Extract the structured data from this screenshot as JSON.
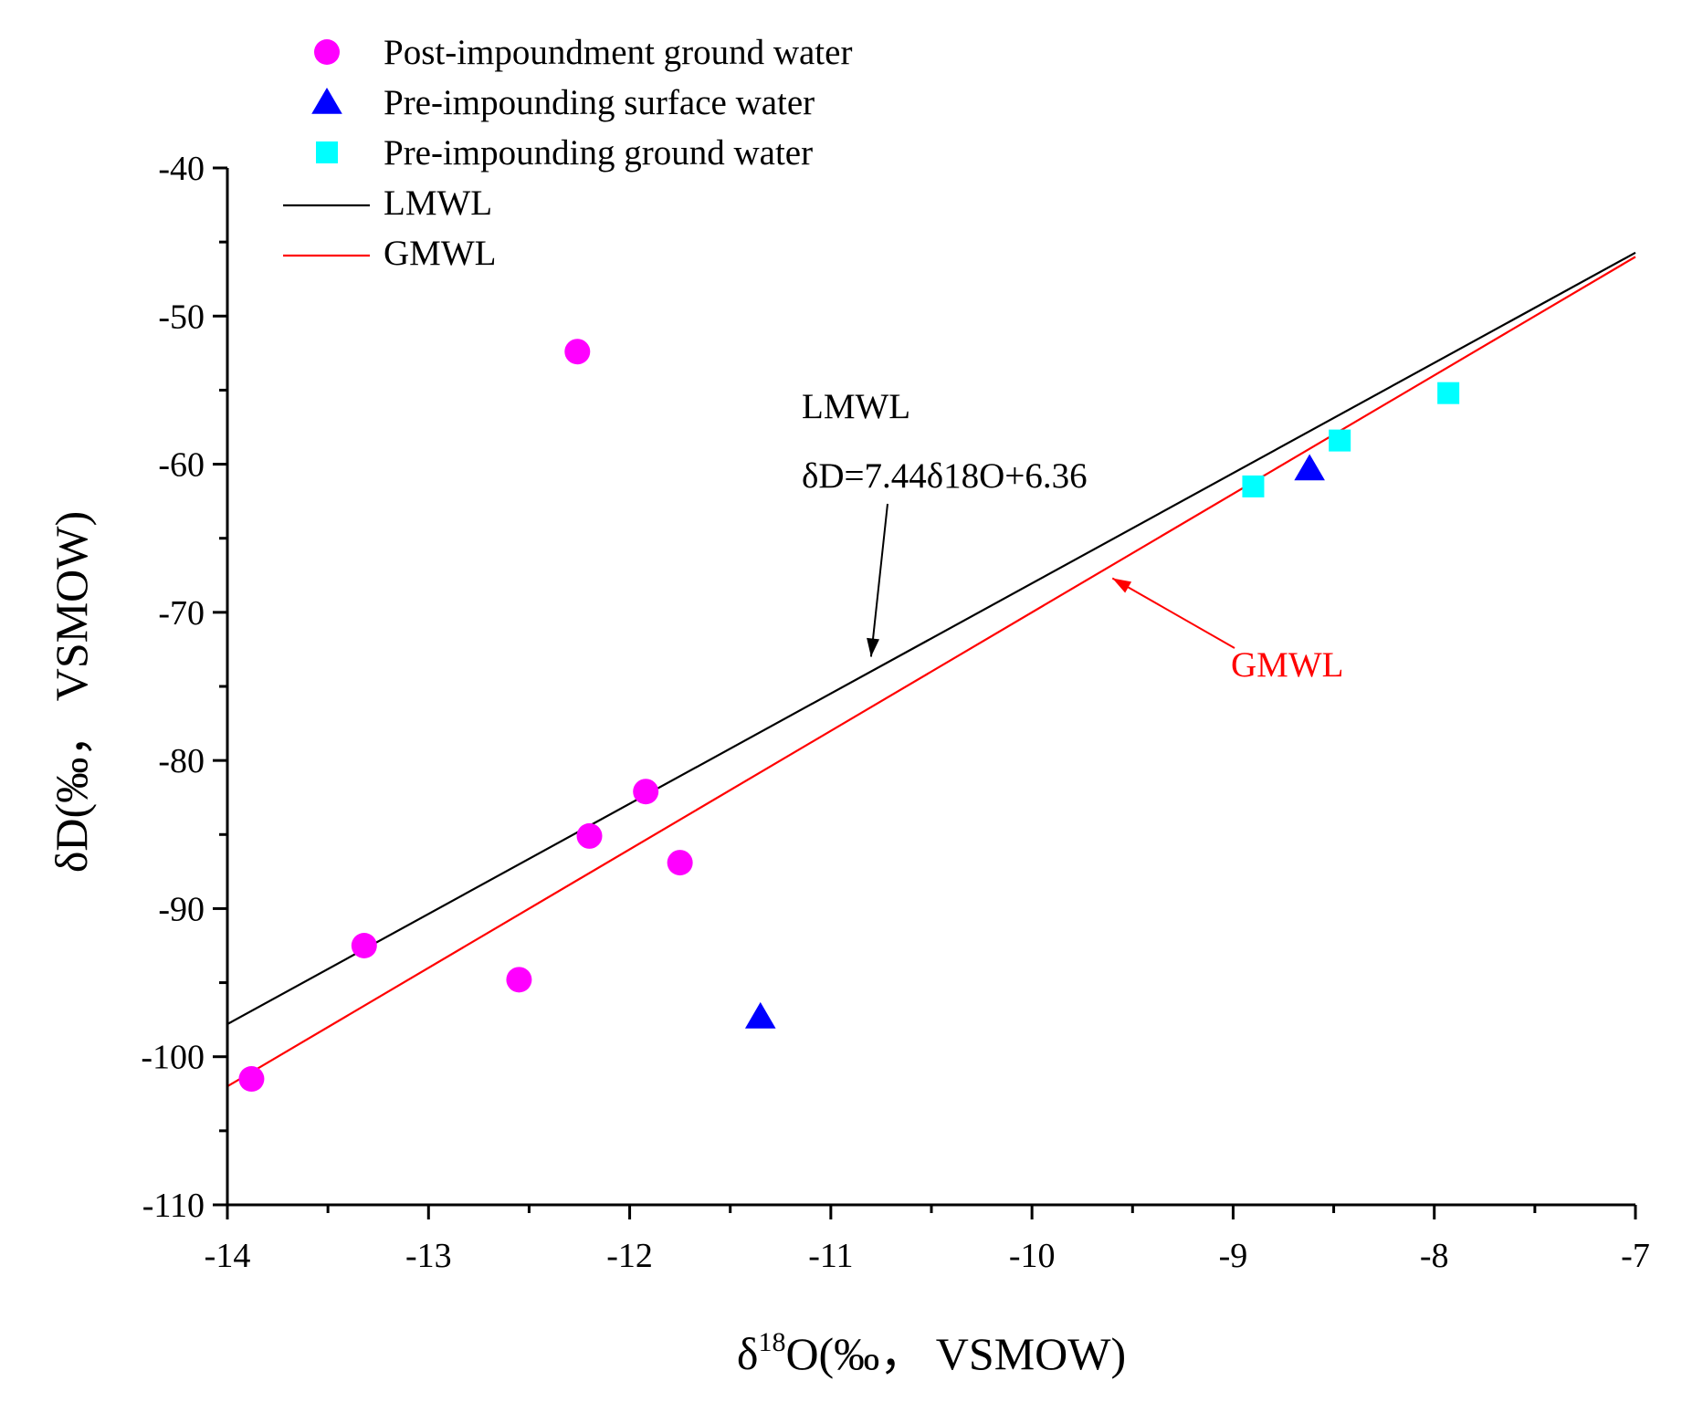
{
  "chart_data": {
    "type": "scatter",
    "title": "",
    "xlabel": {
      "prefix": "δ",
      "sup": "18",
      "rest": "O(‰， VSMOW)"
    },
    "ylabel": "δD(‰， VSMOW)",
    "xlim": [
      -14,
      -7
    ],
    "ylim": [
      -110,
      -40
    ],
    "x_ticks": [
      -14,
      -13,
      -12,
      -11,
      -10,
      -9,
      -8,
      -7
    ],
    "x_tick_labels": [
      "-14",
      "-13",
      "-12",
      "-11",
      "-10",
      "-9",
      "-8",
      "-7"
    ],
    "y_ticks": [
      -110,
      -100,
      -90,
      -80,
      -70,
      -60,
      -50,
      -40
    ],
    "y_tick_labels": [
      "-110",
      "-100",
      "-90",
      "-80",
      "-70",
      "-60",
      "-50",
      "-40"
    ],
    "grid": false,
    "legend_position": "top-left",
    "series": [
      {
        "name": "Post-impoundment ground water",
        "kind": "scatter",
        "marker": "circle",
        "color": "#ff00ff",
        "points": [
          [
            -13.88,
            -101.5
          ],
          [
            -13.32,
            -92.5
          ],
          [
            -12.55,
            -94.8
          ],
          [
            -12.26,
            -52.4
          ],
          [
            -12.2,
            -85.1
          ],
          [
            -11.92,
            -82.1
          ],
          [
            -11.75,
            -86.9
          ]
        ]
      },
      {
        "name": "Pre-impounding surface water",
        "kind": "scatter",
        "marker": "triangle",
        "color": "#0000ff",
        "points": [
          [
            -11.35,
            -97.3
          ],
          [
            -8.62,
            -60.3
          ]
        ]
      },
      {
        "name": "Pre-impounding ground water",
        "kind": "scatter",
        "marker": "square",
        "color": "#00ffff",
        "points": [
          [
            -8.9,
            -61.5
          ],
          [
            -8.47,
            -58.4
          ],
          [
            -7.93,
            -55.2
          ]
        ]
      },
      {
        "name": "LMWL",
        "kind": "line",
        "color": "#000000",
        "slope": 7.44,
        "intercept": 6.36,
        "x_range": [
          -14,
          -7
        ]
      },
      {
        "name": "GMWL",
        "kind": "line",
        "color": "#ff0000",
        "slope": 8,
        "intercept": 10,
        "x_range": [
          -14,
          -7
        ]
      }
    ],
    "annotations": [
      {
        "id": "lmwl",
        "lines": [
          "LMWL",
          "δD=7.44δ18O+6.36"
        ],
        "color": "#000000",
        "arrow_to": [
          -10.8,
          -73.0
        ]
      },
      {
        "id": "gmwl",
        "lines": [
          "GMWL"
        ],
        "color": "#ff0000",
        "arrow_to": [
          -9.6,
          -67.7
        ]
      }
    ]
  }
}
